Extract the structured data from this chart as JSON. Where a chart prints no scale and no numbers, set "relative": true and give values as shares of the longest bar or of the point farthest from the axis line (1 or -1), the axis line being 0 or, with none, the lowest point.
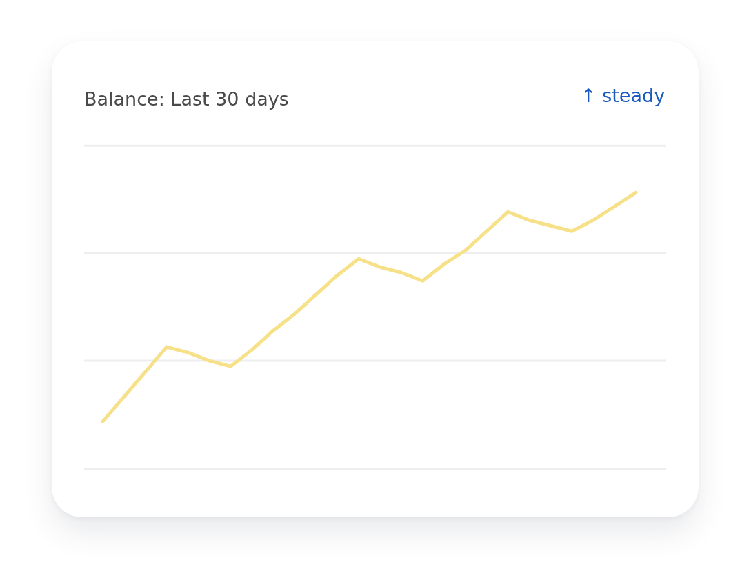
{
  "chart_data": {
    "type": "line",
    "title": "Balance: Last 30 days",
    "annotations": [
      "↑ steady"
    ],
    "categories": [
      null,
      null,
      null,
      null,
      null,
      null,
      null,
      null,
      null,
      null,
      null,
      null,
      null,
      null,
      null,
      null,
      null,
      null,
      null,
      null,
      null,
      null,
      null,
      null,
      null,
      null
    ],
    "values": [
      0.17,
      0.26,
      0.35,
      0.44,
      0.42,
      0.39,
      0.37,
      0.43,
      0.5,
      0.56,
      0.63,
      0.7,
      0.76,
      0.73,
      0.71,
      0.68,
      0.74,
      0.79,
      0.86,
      0.93,
      0.9,
      0.88,
      0.86,
      0.9,
      0.95,
      1
    ],
    "color": "#f6e189",
    "relative": true,
    "ref_lines": [
      {
        "axis": "y",
        "value": 0.39,
        "color": "#eeeef1"
      },
      {
        "axis": "y",
        "value": 0.78,
        "color": "#eeeef1"
      },
      {
        "axis": "y",
        "value": 1.17,
        "color": "#eeeef1"
      }
    ]
  }
}
